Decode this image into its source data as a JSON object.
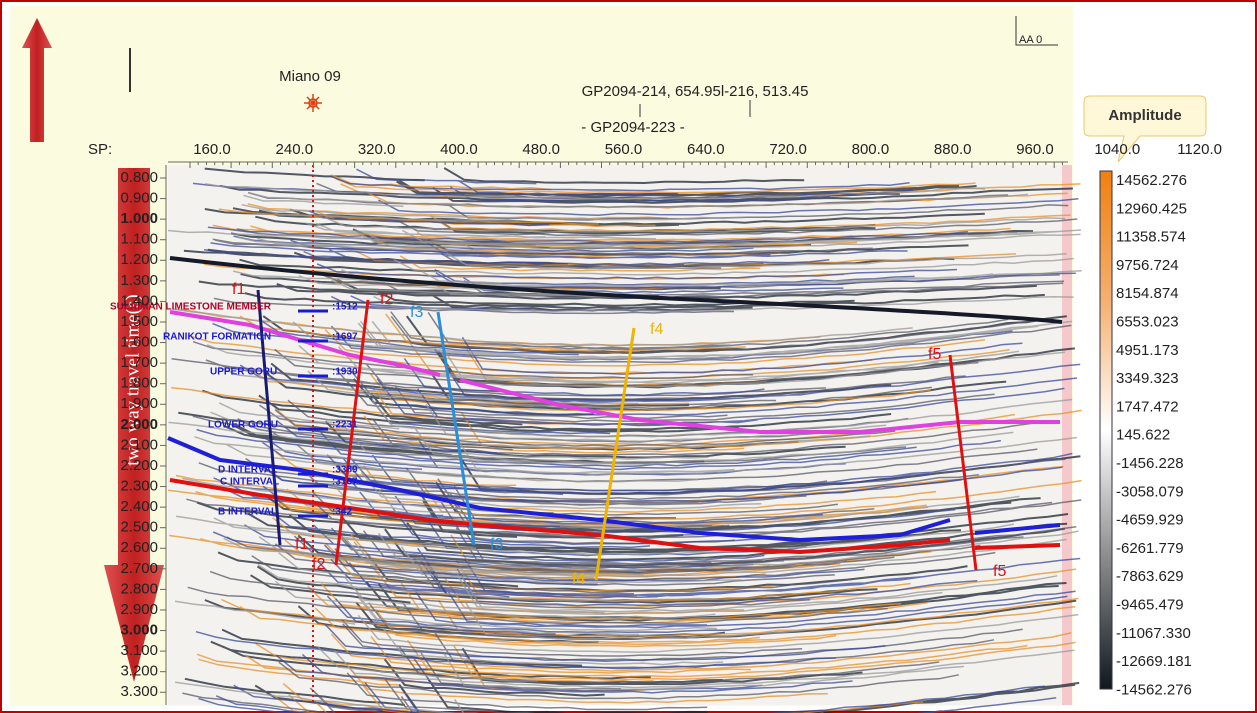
{
  "header": {
    "well": "Miano 09",
    "line_info": "GP2094-214, 654.95l-216, 513.45",
    "line_name": "- GP2094-223 -",
    "scale_label": "AA 0",
    "sp_prefix": "SP:"
  },
  "sp_axis": {
    "labels": [
      "160.0",
      "240.0",
      "320.0",
      "400.0",
      "480.0",
      "560.0",
      "640.0",
      "720.0",
      "800.0",
      "880.0",
      "960.0",
      "1040.0",
      "1120.0"
    ]
  },
  "time_axis": {
    "title": "two way travel time(s)",
    "labels": [
      {
        "text": "0.800",
        "bold": false
      },
      {
        "text": "0.900",
        "bold": false
      },
      {
        "text": "1.000",
        "bold": true
      },
      {
        "text": "1.100",
        "bold": false
      },
      {
        "text": "1.200",
        "bold": false
      },
      {
        "text": "1.300",
        "bold": false
      },
      {
        "text": "1.400",
        "bold": false
      },
      {
        "text": "1.500",
        "bold": false
      },
      {
        "text": "1.600",
        "bold": false
      },
      {
        "text": "1.700",
        "bold": false
      },
      {
        "text": "1.800",
        "bold": false
      },
      {
        "text": "1.900",
        "bold": false
      },
      {
        "text": "2.000",
        "bold": true
      },
      {
        "text": "2.100",
        "bold": false
      },
      {
        "text": "2.200",
        "bold": false
      },
      {
        "text": "2.300",
        "bold": false
      },
      {
        "text": "2.400",
        "bold": false
      },
      {
        "text": "2.500",
        "bold": false
      },
      {
        "text": "2.600",
        "bold": false
      },
      {
        "text": "2.700",
        "bold": false
      },
      {
        "text": "2.800",
        "bold": false
      },
      {
        "text": "2.900",
        "bold": false
      },
      {
        "text": "3.000",
        "bold": true
      },
      {
        "text": "3.100",
        "bold": false
      },
      {
        "text": "3.200",
        "bold": false
      },
      {
        "text": "3.300",
        "bold": false
      }
    ]
  },
  "formation_tops": [
    {
      "name": "SULAIMAN LIMESTONE MEMBER",
      "depth": ":1512",
      "color": "#b0002a"
    },
    {
      "name": "RANIKOT FORMATION",
      "depth": ":1697",
      "color": "#1a1ad0"
    },
    {
      "name": "UPPER GORU",
      "depth": ":1930",
      "color": "#1a1ad0"
    },
    {
      "name": "LOWER GORU",
      "depth": ":2231",
      "color": "#1a1ad0"
    },
    {
      "name": "D INTERVAL",
      "depth": ":3389",
      "color": "#1a1ad0"
    },
    {
      "name": "C INTERVAL",
      "depth": ":3167",
      "color": "#1a1ad0"
    },
    {
      "name": "B INTERVAL",
      "depth": ":342",
      "color": "#1a1ad0"
    }
  ],
  "faults": [
    {
      "label": "f1",
      "color": "#1a1a6e",
      "label_color": "#e01010"
    },
    {
      "label": "f2",
      "color": "#e01010",
      "label_color": "#e01010"
    },
    {
      "label": "f3",
      "color": "#2a8fd8",
      "label_color": "#2a8fd8"
    },
    {
      "label": "f4",
      "color": "#f0b400",
      "label_color": "#f0b400"
    },
    {
      "label": "f5",
      "color": "#e01010",
      "label_color": "#e01010"
    }
  ],
  "colorbar": {
    "title": "Amplitude",
    "labels": [
      "14562.276",
      "12960.425",
      "11358.574",
      "9756.724",
      "8154.874",
      "6553.023",
      "4951.173",
      "3349.323",
      "1747.472",
      "145.622",
      "-1456.228",
      "-3058.079",
      "-4659.929",
      "-6261.779",
      "-7863.629",
      "-9465.479",
      "-11067.330",
      "-12669.181",
      "-14562.276"
    ]
  }
}
